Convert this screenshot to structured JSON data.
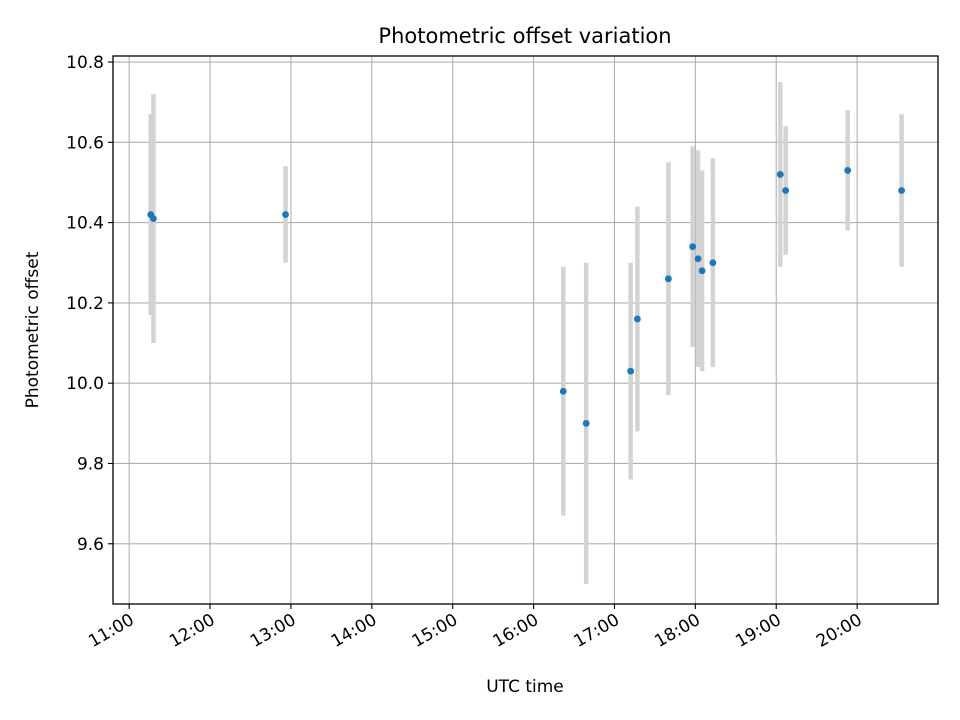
{
  "chart_data": {
    "type": "scatter",
    "title": "Photometric offset variation",
    "xlabel": "UTC time",
    "ylabel": "Photometric offset",
    "grid": true,
    "x_ticks": [
      "11:00",
      "12:00",
      "13:00",
      "14:00",
      "15:00",
      "16:00",
      "17:00",
      "18:00",
      "19:00",
      "20:00"
    ],
    "y_ticks": [
      "9.6",
      "9.8",
      "10.0",
      "10.2",
      "10.4",
      "10.6",
      "10.8"
    ],
    "xlim": [
      "10:48",
      "21:00"
    ],
    "ylim": [
      9.45,
      10.815
    ],
    "colors": {
      "point": "#1f77b4",
      "errorbar": "#d3d3d3",
      "grid": "#b0b0b0"
    },
    "points": [
      {
        "x": "11:16",
        "y": 10.42,
        "err": 0.25
      },
      {
        "x": "11:18",
        "y": 10.41,
        "err": 0.31
      },
      {
        "x": "12:56",
        "y": 10.42,
        "err": 0.12
      },
      {
        "x": "16:22",
        "y": 9.98,
        "err": 0.31
      },
      {
        "x": "16:39",
        "y": 9.9,
        "err": 0.4
      },
      {
        "x": "17:12",
        "y": 10.03,
        "err": 0.27
      },
      {
        "x": "17:17",
        "y": 10.16,
        "err": 0.28
      },
      {
        "x": "17:40",
        "y": 10.26,
        "err": 0.29
      },
      {
        "x": "17:58",
        "y": 10.34,
        "err": 0.25
      },
      {
        "x": "18:02",
        "y": 10.31,
        "err": 0.27
      },
      {
        "x": "18:05",
        "y": 10.28,
        "err": 0.25
      },
      {
        "x": "18:13",
        "y": 10.3,
        "err": 0.26
      },
      {
        "x": "19:03",
        "y": 10.52,
        "err": 0.23
      },
      {
        "x": "19:07",
        "y": 10.48,
        "err": 0.16
      },
      {
        "x": "19:53",
        "y": 10.53,
        "err": 0.15
      },
      {
        "x": "20:33",
        "y": 10.48,
        "err": 0.19
      }
    ]
  }
}
